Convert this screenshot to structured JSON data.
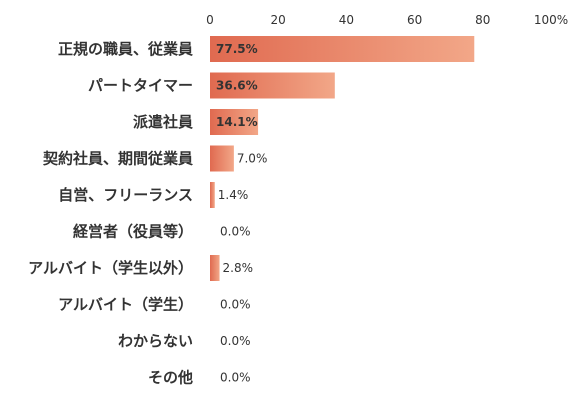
{
  "chart_data": {
    "type": "bar",
    "orientation": "horizontal",
    "categories": [
      "正規の職員、従業員",
      "パートタイマー",
      "派遣社員",
      "契約社員、期間従業員",
      "自営、フリーランス",
      "経営者（役員等）",
      "アルバイト（学生以外）",
      "アルバイト（学生）",
      "わからない",
      "その他"
    ],
    "values": [
      77.5,
      36.6,
      14.1,
      7.0,
      1.4,
      0.0,
      2.8,
      0.0,
      0.0,
      0.0
    ],
    "data_labels": [
      "77.5%",
      "36.6%",
      "14.1%",
      "7.0%",
      "1.4%",
      "0.0%",
      "2.8%",
      "0.0%",
      "0.0%",
      "0.0%"
    ],
    "x_ticks": [
      "0",
      "20",
      "40",
      "60",
      "80",
      "100%"
    ],
    "xlim": [
      0,
      100
    ],
    "title": "",
    "xlabel": "",
    "ylabel": "",
    "grid": false,
    "legend": "none",
    "colors": {
      "bar_start": "#e06a50",
      "bar_end": "#f2a788",
      "text": "#333333"
    }
  }
}
